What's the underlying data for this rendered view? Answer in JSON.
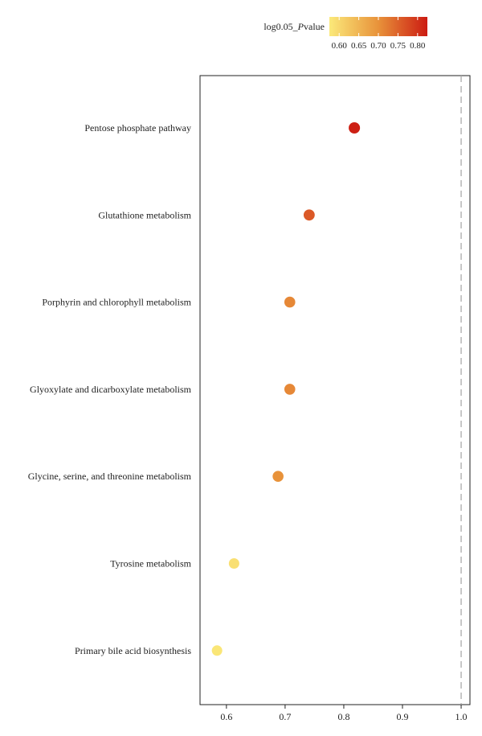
{
  "chart_data": {
    "type": "scatter",
    "title": "",
    "xlabel": "",
    "ylabel": "",
    "xlim": [
      0.555,
      1.015
    ],
    "x_ticks": [
      0.6,
      0.7,
      0.8,
      0.9,
      1.0
    ],
    "x_tick_labels": [
      "0.6",
      "0.7",
      "0.8",
      "0.9",
      "1.0"
    ],
    "reference_line_x": 1.0,
    "grid": false,
    "categories": [
      "Pentose phosphate pathway",
      "Glutathione metabolism",
      "Porphyrin and chlorophyll metabolism",
      "Glyoxylate and dicarboxylate metabolism",
      "Glycine, serine, and threonine metabolism",
      "Tyrosine metabolism",
      "Primary bile acid biosynthesis"
    ],
    "points": [
      {
        "category": "Pentose phosphate pathway",
        "x": 0.818,
        "pvalue": 0.82
      },
      {
        "category": "Glutathione metabolism",
        "x": 0.741,
        "pvalue": 0.76
      },
      {
        "category": "Porphyrin and chlorophyll metabolism",
        "x": 0.708,
        "pvalue": 0.71
      },
      {
        "category": "Glyoxylate and dicarboxylate metabolism",
        "x": 0.708,
        "pvalue": 0.71
      },
      {
        "category": "Glycine, serine, and threonine metabolism",
        "x": 0.688,
        "pvalue": 0.7
      },
      {
        "category": "Tyrosine metabolism",
        "x": 0.613,
        "pvalue": 0.59
      },
      {
        "category": "Primary bile acid biosynthesis",
        "x": 0.584,
        "pvalue": 0.58
      }
    ],
    "legend": {
      "title_prefix": "log0.05_",
      "title_italic": "P",
      "title_suffix": "value",
      "position": "top-right",
      "range": [
        0.575,
        0.825
      ],
      "ticks": [
        0.6,
        0.65,
        0.7,
        0.75,
        0.8
      ],
      "tick_labels": [
        "0.60",
        "0.65",
        "0.70",
        "0.75",
        "0.80"
      ],
      "colors": [
        "#fbe97a",
        "#e8923a",
        "#cc1b12"
      ]
    }
  }
}
